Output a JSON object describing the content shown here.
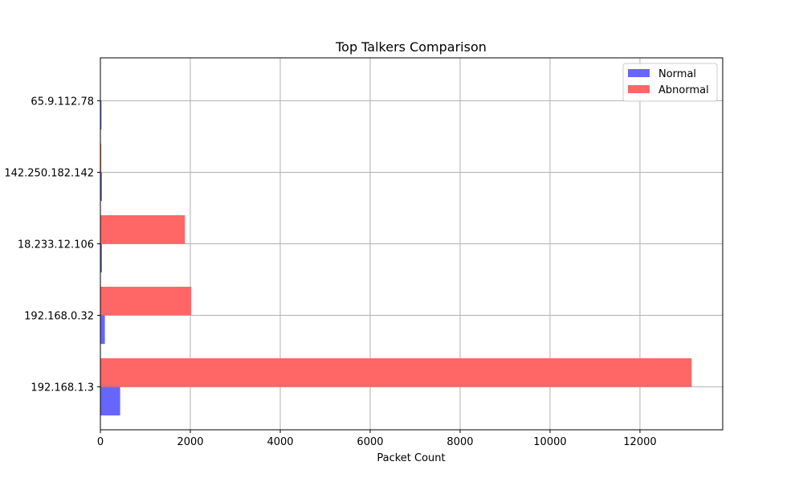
{
  "chart_data": {
    "type": "bar",
    "orientation": "horizontal",
    "title": "Top Talkers Comparison",
    "xlabel": "Packet Count",
    "ylabel": "",
    "categories": [
      "192.168.1.3",
      "192.168.0.32",
      "18.233.12.106",
      "142.250.182.142",
      "65.9.112.78"
    ],
    "series": [
      {
        "name": "Normal",
        "color": "#6666ff",
        "values": [
          440,
          100,
          35,
          35,
          25
        ]
      },
      {
        "name": "Abnormal",
        "color": "#ff6666",
        "values": [
          13150,
          2020,
          1880,
          20,
          0
        ]
      }
    ],
    "xlim": [
      0,
      13840
    ],
    "xticks": [
      0,
      2000,
      4000,
      6000,
      8000,
      10000,
      12000
    ],
    "xtick_labels": [
      "0",
      "2000",
      "4000",
      "6000",
      "8000",
      "10000",
      "12000"
    ],
    "grid": true,
    "legend_position": "top-right"
  }
}
